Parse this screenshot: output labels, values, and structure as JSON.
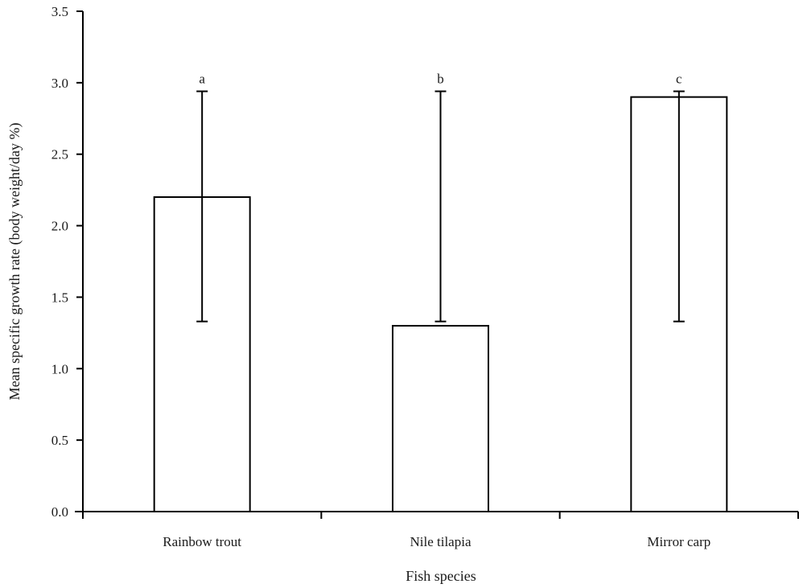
{
  "chart_data": {
    "type": "bar",
    "title": "",
    "xlabel": "Fish species",
    "ylabel": "Mean specific growth rate (body weight/day %)",
    "categories": [
      "Rainbow trout",
      "Nile tilapia",
      "Mirror carp"
    ],
    "values": [
      2.2,
      1.3,
      2.9
    ],
    "error_bars": {
      "lower": [
        1.33,
        1.33,
        1.33
      ],
      "upper": [
        2.94,
        2.94,
        2.94
      ]
    },
    "significance_letters": [
      "a",
      "b",
      "c"
    ],
    "ylim": [
      0,
      3.5
    ],
    "yticks": [
      0.0,
      0.5,
      1.0,
      1.5,
      2.0,
      2.5,
      3.0,
      3.5
    ],
    "ytick_labels": [
      "0.0",
      "0.5",
      "1.0",
      "1.5",
      "2.0",
      "2.5",
      "3.0",
      "3.5"
    ],
    "grid": false,
    "legend": null,
    "bar_fill": "#ffffff",
    "bar_stroke": "#000000"
  },
  "axes": {
    "x_title": "Fish species",
    "y_title": "Mean specific growth rate (body weight/day %)"
  }
}
